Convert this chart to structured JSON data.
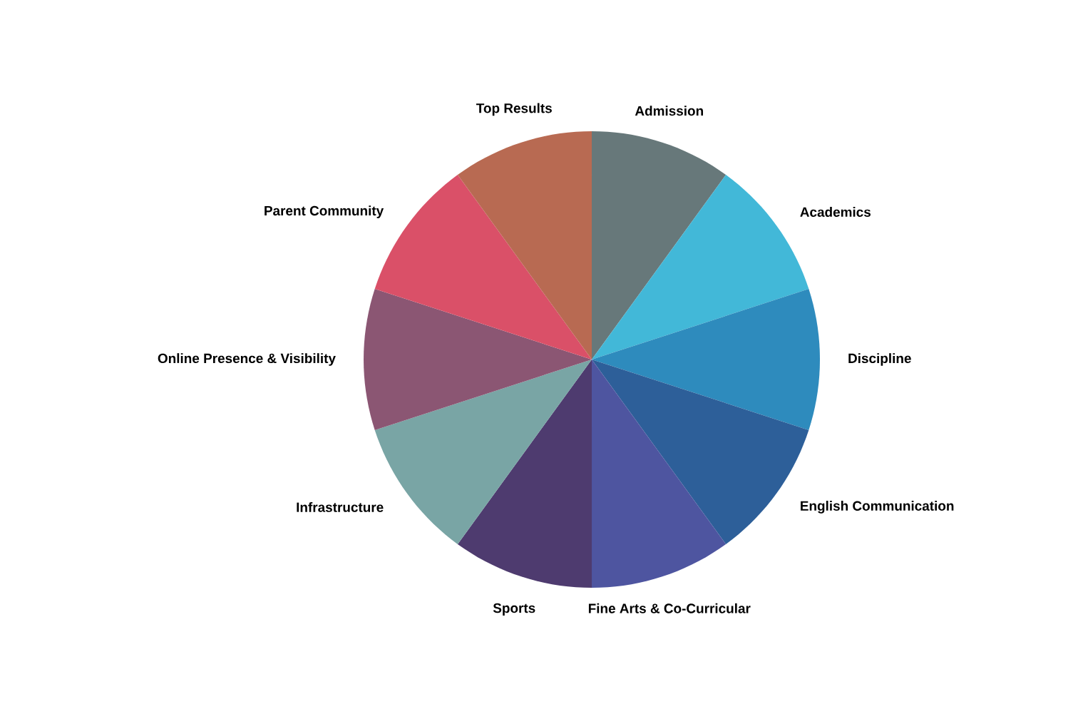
{
  "chart_data": {
    "type": "pie",
    "categories": [
      "Admission",
      "Academics",
      "Discipline",
      "English Communication",
      "Fine Arts & Co-Curricular",
      "Sports",
      "Infrastructure",
      "Online Presence & Visibility",
      "Parent Community",
      "Top Results"
    ],
    "values": [
      10,
      10,
      10,
      10,
      10,
      10,
      10,
      10,
      10,
      10
    ],
    "colors": [
      "#67787a",
      "#42b8d8",
      "#2e8bbd",
      "#2d5f99",
      "#4e55a0",
      "#4e3b6f",
      "#79a5a5",
      "#8b5673",
      "#da5068",
      "#b86a52"
    ]
  }
}
